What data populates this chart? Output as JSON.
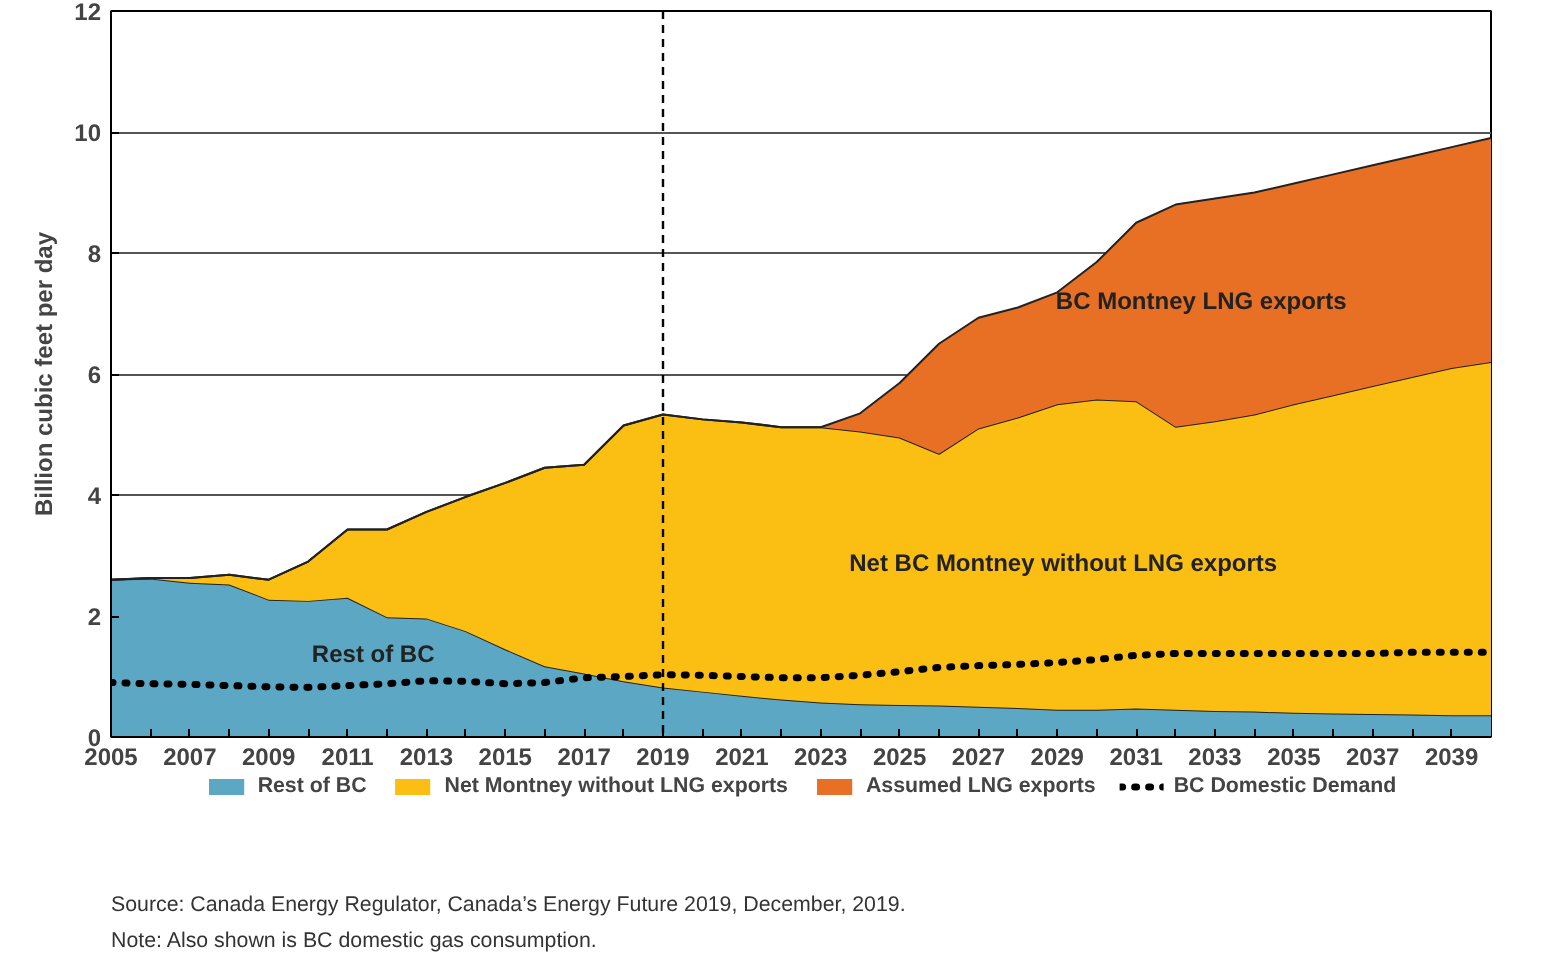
{
  "chart_data": {
    "type": "area",
    "stacked": true,
    "ylabel": "Billion cubic feet per day",
    "x": [
      2005,
      2006,
      2007,
      2008,
      2009,
      2010,
      2011,
      2012,
      2013,
      2014,
      2015,
      2016,
      2017,
      2018,
      2019,
      2020,
      2021,
      2022,
      2023,
      2024,
      2025,
      2026,
      2027,
      2028,
      2029,
      2030,
      2031,
      2032,
      2033,
      2034,
      2035,
      2036,
      2037,
      2038,
      2039,
      2040
    ],
    "series": [
      {
        "name": "Rest of BC",
        "color": "#5ba7c4",
        "values": [
          2.6,
          2.62,
          2.55,
          2.52,
          2.27,
          2.25,
          2.3,
          1.98,
          1.96,
          1.75,
          1.45,
          1.17,
          1.05,
          0.92,
          0.82,
          0.75,
          0.68,
          0.62,
          0.57,
          0.54,
          0.53,
          0.52,
          0.5,
          0.48,
          0.45,
          0.45,
          0.47,
          0.45,
          0.43,
          0.42,
          0.4,
          0.39,
          0.38,
          0.37,
          0.36,
          0.36
        ]
      },
      {
        "name": "Net Montney without LNG exports",
        "color": "#fbbf14",
        "values": [
          0,
          0.01,
          0.08,
          0.16,
          0.33,
          0.65,
          1.13,
          1.45,
          1.76,
          2.22,
          2.75,
          3.28,
          3.45,
          4.23,
          4.51,
          4.5,
          4.52,
          4.5,
          4.55,
          4.51,
          4.42,
          4.16,
          4.6,
          4.8,
          5.05,
          5.13,
          5.08,
          4.68,
          4.79,
          4.91,
          5.1,
          5.26,
          5.42,
          5.58,
          5.74,
          5.84
        ]
      },
      {
        "name": "Assumed LNG exports",
        "color": "#e87025",
        "values": [
          0,
          0,
          0,
          0,
          0,
          0,
          0,
          0,
          0,
          0,
          0,
          0,
          0,
          0,
          0,
          0,
          0,
          0,
          0,
          0.3,
          0.9,
          1.82,
          1.83,
          1.82,
          1.85,
          2.27,
          2.95,
          3.67,
          3.68,
          3.67,
          3.65,
          3.65,
          3.65,
          3.65,
          3.65,
          3.7
        ]
      },
      {
        "name": "BC Domestic Demand",
        "type": "line",
        "color": "#000000",
        "line_style": "dotted",
        "values": [
          0.9,
          0.88,
          0.87,
          0.85,
          0.83,
          0.82,
          0.85,
          0.88,
          0.93,
          0.92,
          0.88,
          0.9,
          0.98,
          1.0,
          1.03,
          1.02,
          1.0,
          0.98,
          0.98,
          1.02,
          1.08,
          1.15,
          1.18,
          1.2,
          1.23,
          1.28,
          1.35,
          1.38,
          1.38,
          1.38,
          1.38,
          1.38,
          1.38,
          1.4,
          1.4,
          1.4
        ]
      }
    ],
    "xlim": [
      2005,
      2040
    ],
    "ylim": [
      0,
      12
    ],
    "xticks": [
      2005,
      {
        "value": 2006,
        "label": null
      },
      2007,
      {
        "value": 2008,
        "label": null
      },
      2009,
      {
        "value": 2010,
        "label": null
      },
      2011,
      {
        "value": 2012,
        "label": null
      },
      2013,
      {
        "value": 2014,
        "label": null
      },
      2015,
      {
        "value": 2016,
        "label": null
      },
      2017,
      {
        "value": 2018,
        "label": null
      },
      2019,
      {
        "value": 2020,
        "label": null
      },
      2021,
      {
        "value": 2022,
        "label": null
      },
      2023,
      {
        "value": 2024,
        "label": null
      },
      2025,
      {
        "value": 2026,
        "label": null
      },
      2027,
      {
        "value": 2028,
        "label": null
      },
      2029,
      {
        "value": 2030,
        "label": null
      },
      2031,
      {
        "value": 2032,
        "label": null
      },
      2033,
      {
        "value": 2034,
        "label": null
      },
      2035,
      {
        "value": 2036,
        "label": null
      },
      2037,
      {
        "value": 2038,
        "label": null
      },
      2039
    ],
    "yticks": [
      0,
      2,
      4,
      6,
      8,
      10,
      12
    ],
    "grid": "y",
    "legend": "bottom",
    "ref_lines": [
      {
        "axis": "x",
        "value": 2019,
        "line_style": "dashed",
        "color": "#000000"
      }
    ],
    "annotations": [
      "Rest of BC",
      "Net BC Montney without LNG exports",
      "BC Montney LNG exports",
      "Source:   Canada Energy Regulator, Canada’s Energy Future 2019, December, 2019.",
      "Note:      Also shown is BC domestic gas consumption."
    ]
  }
}
